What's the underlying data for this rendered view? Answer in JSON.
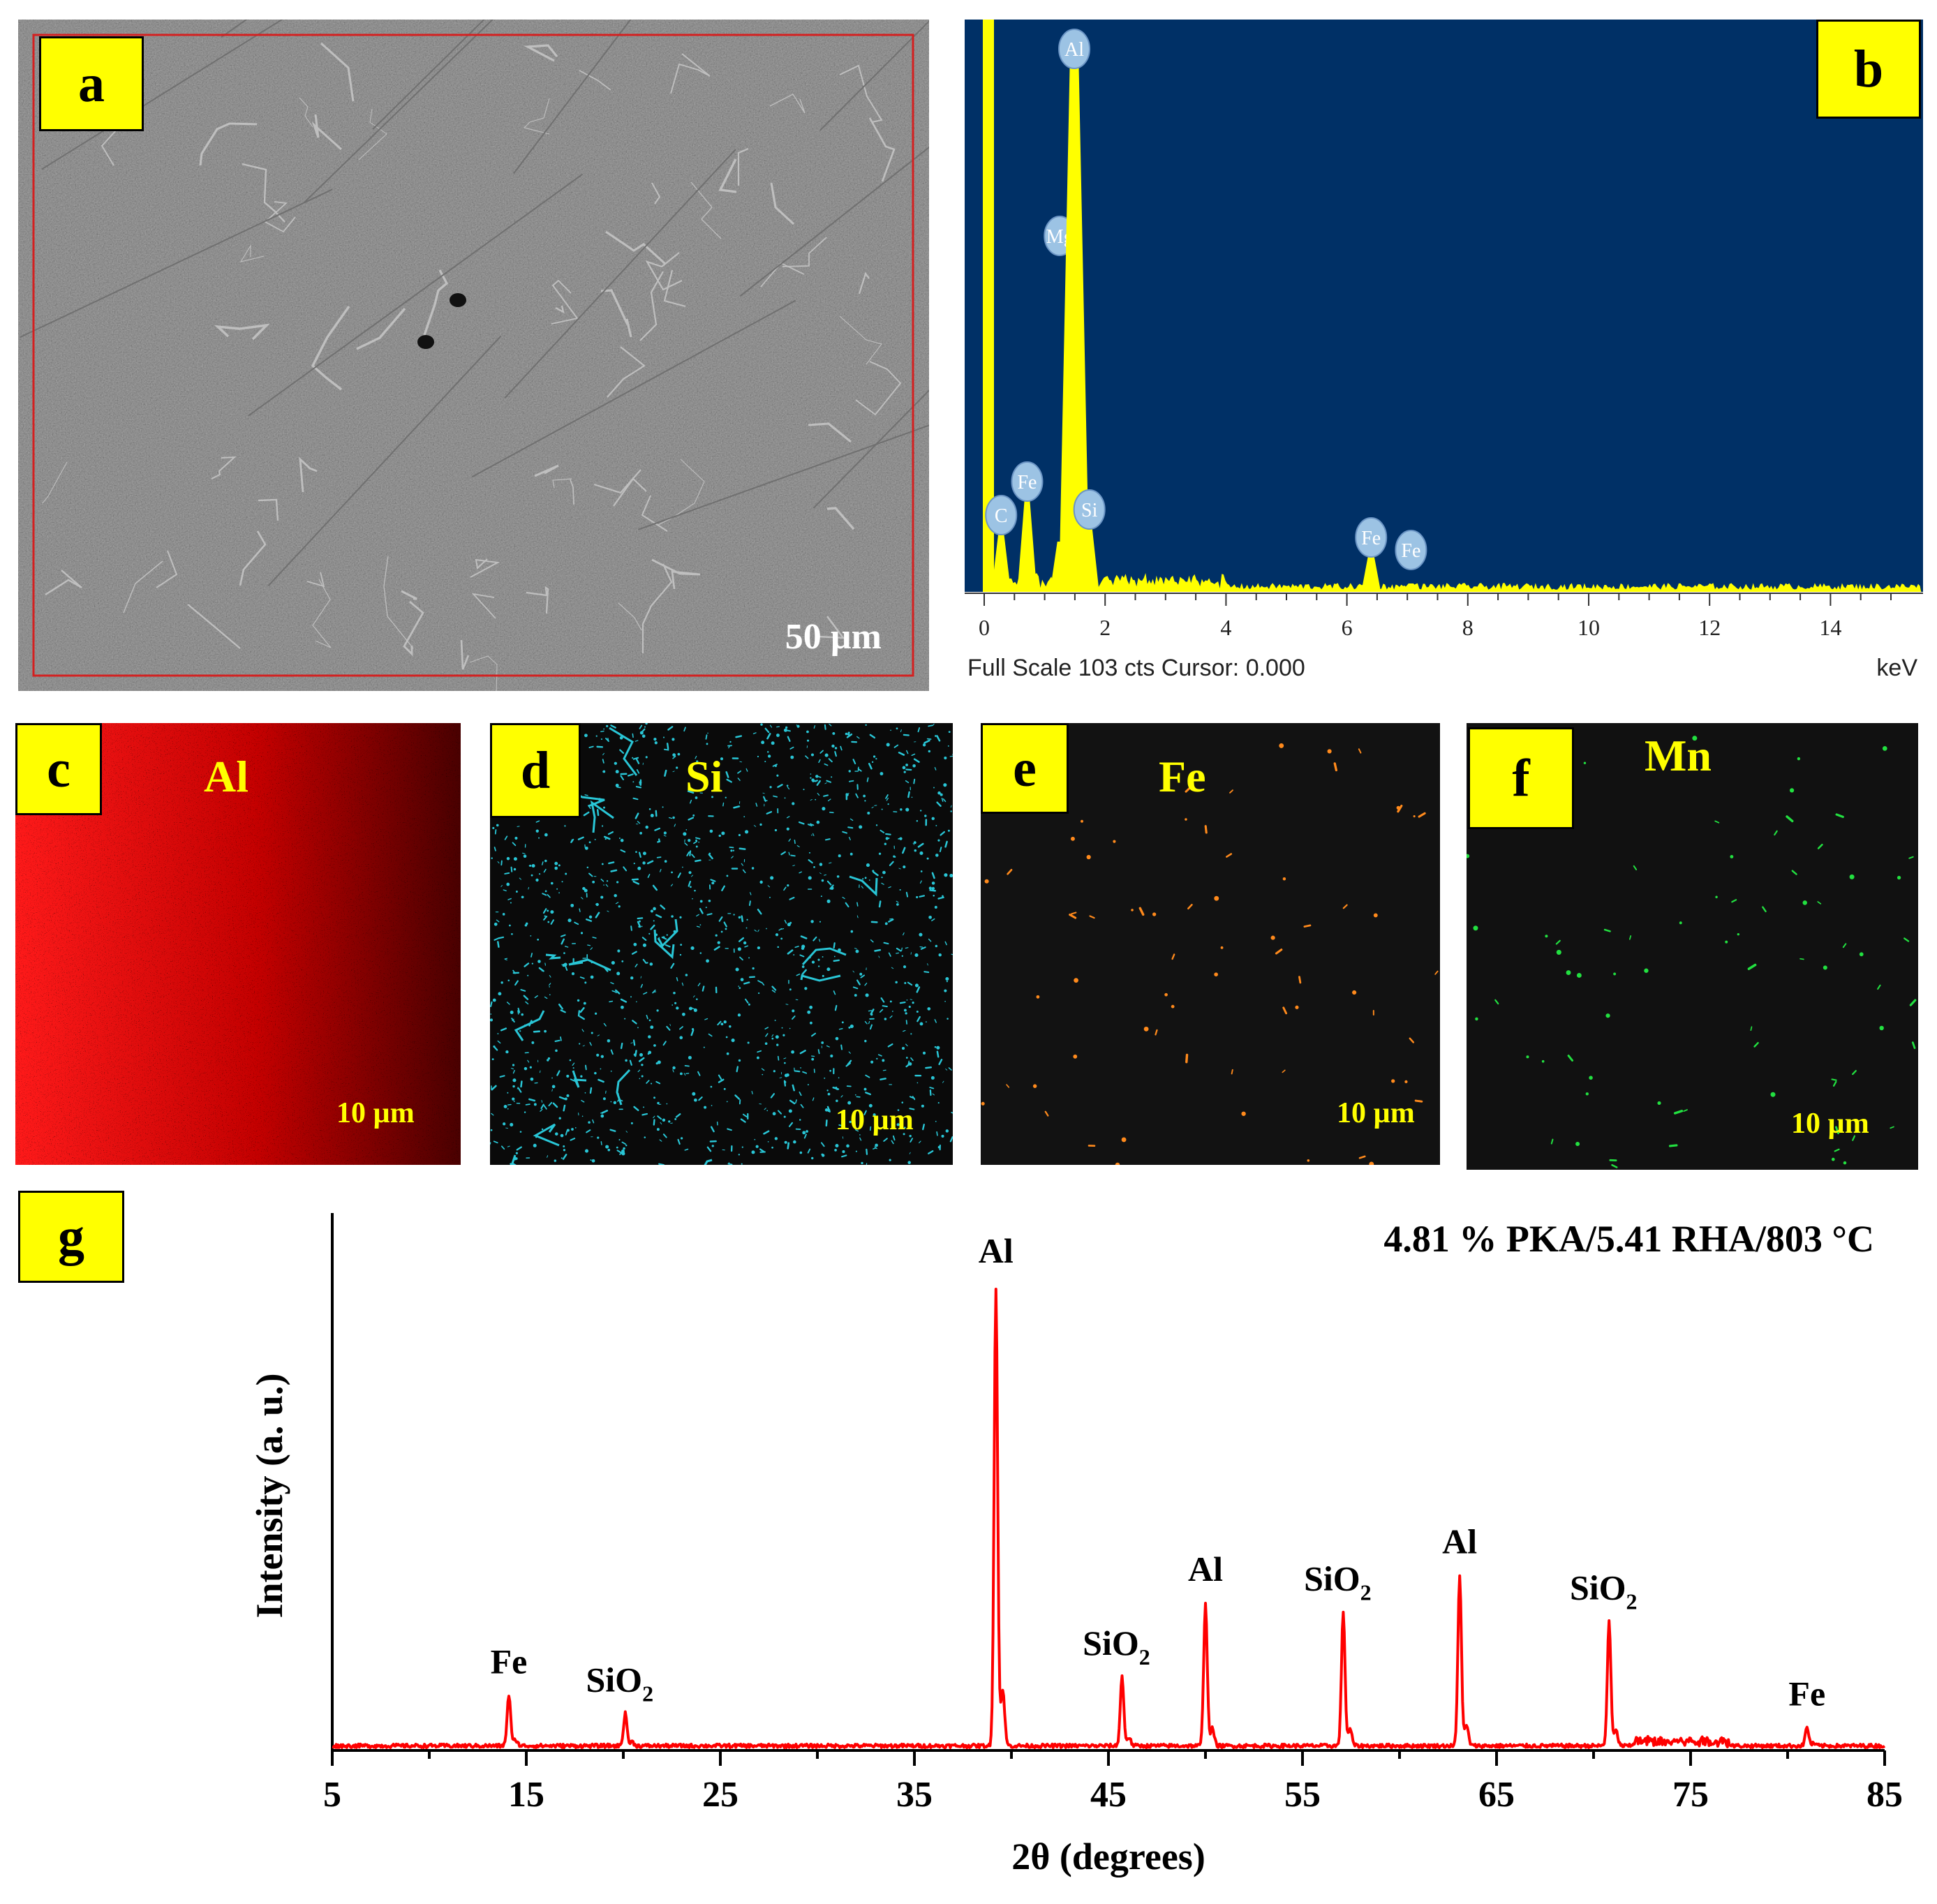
{
  "panels": {
    "a": {
      "tag": "a",
      "scale": "50 µm"
    },
    "b": {
      "tag": "b",
      "footer_left": "Full Scale 103 cts Cursor: 0.000",
      "footer_right": "keV"
    },
    "c": {
      "tag": "c",
      "element": "Al",
      "scale": "10 µm",
      "color": "#ff0000"
    },
    "d": {
      "tag": "d",
      "element": "Si",
      "scale": "10 µm",
      "color": "#29c6d6"
    },
    "e": {
      "tag": "e",
      "element": "Fe",
      "scale": "10 µm",
      "color": "#ff8a1c"
    },
    "f": {
      "tag": "f",
      "element": "Mn",
      "scale": "10 µm",
      "color": "#22e040"
    },
    "g": {
      "tag": "g"
    }
  },
  "chart_data": [
    {
      "type": "bar",
      "panel": "b",
      "x_ticks": [
        "0",
        "2",
        "4",
        "6",
        "8",
        "10",
        "12",
        "14"
      ],
      "xlim": [
        0,
        15.5
      ],
      "peaks": [
        {
          "label": "C",
          "x": 0.28,
          "y": 0.11
        },
        {
          "label": "Fe",
          "x": 0.71,
          "y": 0.17
        },
        {
          "label": "Mg",
          "x": 1.25,
          "y": 0.09
        },
        {
          "label": "Al",
          "x": 1.49,
          "y": 1.0
        },
        {
          "label": "Si",
          "x": 1.74,
          "y": 0.12
        },
        {
          "label": "Fe",
          "x": 6.4,
          "y": 0.07
        },
        {
          "label": "Fe",
          "x": 7.06,
          "y": 0.015
        }
      ],
      "xlabel": "keV",
      "colors": {
        "background": "#003066",
        "signal": "#ffff00",
        "marker": "#9cc3e4"
      }
    },
    {
      "type": "line",
      "panel": "g",
      "annotation": "4.81 % PKA/5.41 RHA/803 °C",
      "xlabel": "2θ (degrees)",
      "ylabel": "Intensity (a. u.)",
      "xlim": [
        5,
        85
      ],
      "x_ticks": [
        "5",
        "15",
        "25",
        "35",
        "45",
        "55",
        "65",
        "75",
        "85"
      ],
      "peaks": [
        {
          "label": "Fe",
          "sub": "",
          "x": 14.1,
          "y": 0.11
        },
        {
          "label": "SiO",
          "sub": "2",
          "x": 20.1,
          "y": 0.07
        },
        {
          "label": "Al",
          "sub": "",
          "x": 39.2,
          "y": 1.0
        },
        {
          "label": "SiO",
          "sub": "2",
          "x": 45.7,
          "y": 0.15
        },
        {
          "label": "Al",
          "sub": "",
          "x": 50.0,
          "y": 0.31
        },
        {
          "label": "SiO",
          "sub": "2",
          "x": 57.1,
          "y": 0.29
        },
        {
          "label": "Al",
          "sub": "",
          "x": 63.1,
          "y": 0.37
        },
        {
          "label": "SiO",
          "sub": "2",
          "x": 70.8,
          "y": 0.27
        },
        {
          "label": "Fe",
          "sub": "",
          "x": 81.0,
          "y": 0.04
        }
      ],
      "colors": {
        "line": "#ff0000"
      }
    }
  ]
}
